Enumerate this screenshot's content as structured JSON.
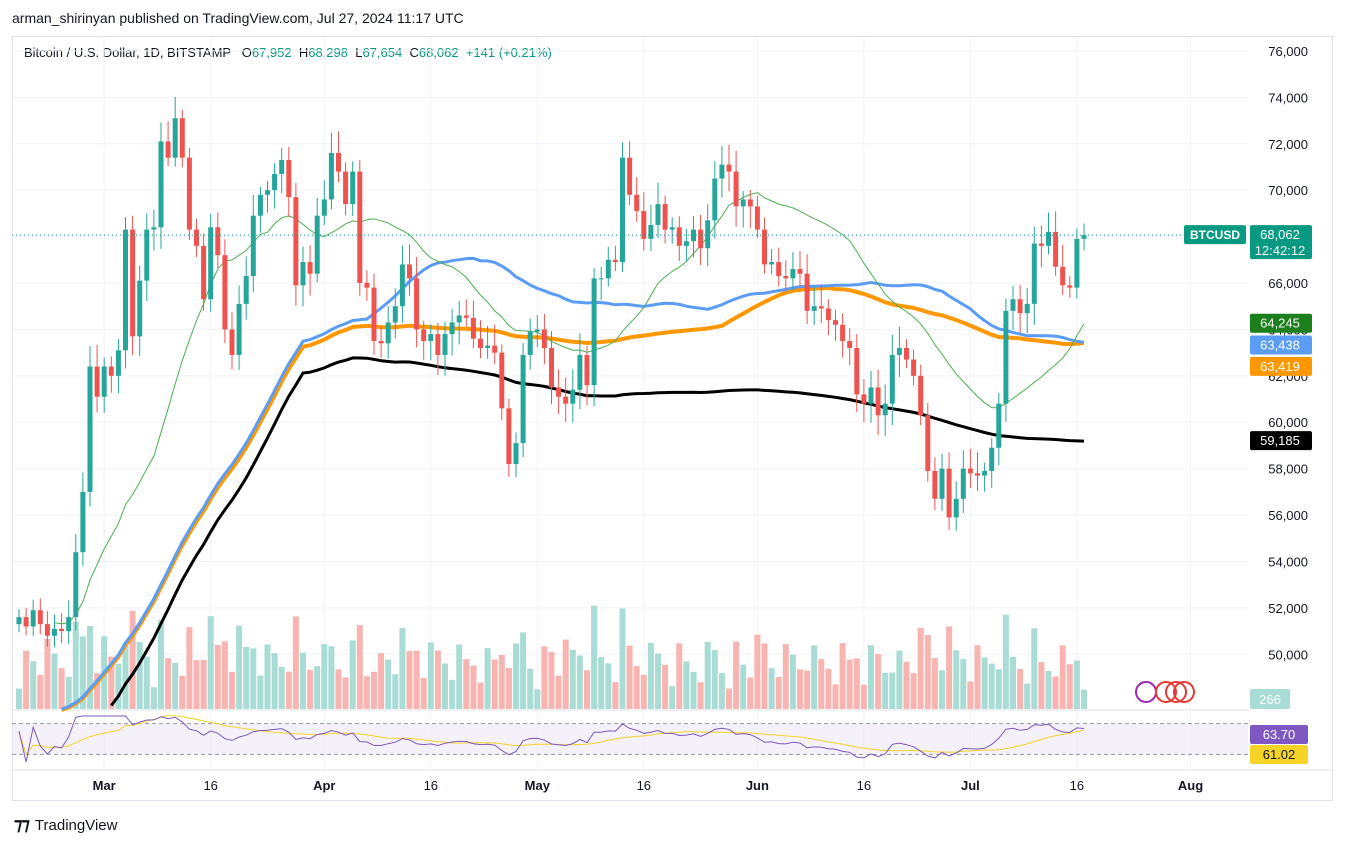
{
  "header": "arman_shirinyan published on TradingView.com, Jul 27, 2024 11:17 UTC",
  "legend": {
    "symbol": "Bitcoin / U.S. Dollar, 1D, BITSTAMP",
    "o_label": "O",
    "o": "67,952",
    "h_label": "H",
    "h": "68,298",
    "l_label": "L",
    "l": "67,654",
    "c_label": "C",
    "c": "68,062",
    "change": "+141 (+0.21%)"
  },
  "footer": {
    "brand": "TradingView"
  },
  "colors": {
    "up": "#26a69a",
    "down": "#ef5350",
    "ma20": "#4caf50",
    "ma50": "#5b9cf6",
    "ma100": "#ff9800",
    "ma200": "#000000",
    "rsi": "#7e57c2",
    "rsi_ma": "#f5d327"
  },
  "chart_data": {
    "type": "candlestick",
    "symbol": "BTCUSD",
    "interval": "1D",
    "y_range": [
      47600,
      76600
    ],
    "y_ticks": [
      50000,
      52000,
      54000,
      56000,
      58000,
      60000,
      62000,
      64000,
      66000,
      68000,
      70000,
      72000,
      74000,
      76000
    ],
    "x_ticks": [
      {
        "label": "Mar",
        "date": "2024-03-01"
      },
      {
        "label": "16",
        "date": "2024-03-16"
      },
      {
        "label": "Apr",
        "date": "2024-04-01"
      },
      {
        "label": "16",
        "date": "2024-04-16"
      },
      {
        "label": "May",
        "date": "2024-05-01"
      },
      {
        "label": "16",
        "date": "2024-05-16"
      },
      {
        "label": "Jun",
        "date": "2024-06-01"
      },
      {
        "label": "16",
        "date": "2024-06-16"
      },
      {
        "label": "Jul",
        "date": "2024-07-01"
      },
      {
        "label": "16",
        "date": "2024-07-16"
      },
      {
        "label": "Aug",
        "date": "2024-08-01"
      }
    ],
    "candles": {
      "start": "2024-02-18",
      "close": [
        51600,
        51200,
        51900,
        51300,
        50800,
        51100,
        51000,
        51600,
        54400,
        57000,
        62400,
        61100,
        62400,
        62000,
        63100,
        68300,
        63700,
        66100,
        68300,
        68400,
        72100,
        71400,
        73100,
        71400,
        68300,
        67600,
        65300,
        68400,
        67200,
        64000,
        62900,
        65100,
        66300,
        68900,
        69800,
        70000,
        70700,
        71300,
        69700,
        65900,
        66900,
        66400,
        68900,
        69600,
        71600,
        70800,
        69400,
        70800,
        66000,
        65800,
        63500,
        63400,
        64300,
        65000,
        66800,
        66200,
        64000,
        63500,
        63800,
        62900,
        63800,
        64300,
        64600,
        64500,
        63600,
        63200,
        63300,
        63000,
        60600,
        58200,
        59100,
        62900,
        63900,
        64000,
        63200,
        61500,
        61100,
        60800,
        61400,
        62900,
        61600,
        66200,
        66200,
        67000,
        66900,
        71400,
        69800,
        69100,
        67900,
        68500,
        69400,
        68300,
        68400,
        67600,
        67800,
        68300,
        67500,
        68700,
        70500,
        71100,
        70800,
        69300,
        69600,
        69300,
        68300,
        66800,
        66900,
        66300,
        66200,
        66600,
        66400,
        64800,
        65000,
        64900,
        64400,
        64200,
        63500,
        63200,
        61200,
        60800,
        61500,
        60300,
        60800,
        62900,
        63200,
        62700,
        62000,
        60300,
        57900,
        56700,
        58000,
        55900,
        56700,
        58000,
        57800,
        57700,
        57900,
        58900,
        60800,
        64800,
        65300,
        64700,
        65100,
        67700,
        67600,
        68200,
        66700,
        65900,
        65800,
        67900,
        68062
      ],
      "ma20_start": [
        64245,
        "2024-07-26"
      ],
      "last_values": {
        "ma20": 64245,
        "ma50": 63438,
        "ma100": 63419,
        "ma200": 59185
      }
    },
    "price_labels": [
      {
        "text": "BTCUSD",
        "value": "68,062",
        "countdown": "12:42:12",
        "color": "#089981"
      },
      {
        "text": "",
        "value": "64,245",
        "countdown": "",
        "color": "#1b7f1b"
      },
      {
        "text": "",
        "value": "63,438",
        "countdown": "",
        "color": "#5b9cf6"
      },
      {
        "text": "",
        "value": "63,419",
        "countdown": "",
        "color": "#ff9800"
      },
      {
        "text": "",
        "value": "59,185",
        "countdown": "",
        "color": "#000000"
      }
    ],
    "volume_label": "266",
    "rsi": {
      "value": "63.70",
      "ma_value": "61.02"
    }
  }
}
